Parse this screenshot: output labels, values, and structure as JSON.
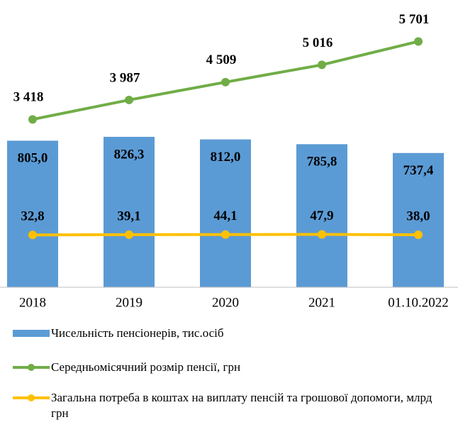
{
  "chart_data": {
    "type": "bar-line",
    "categories": [
      "2018",
      "2019",
      "2020",
      "2021",
      "01.10.2022"
    ],
    "ylim": [
      0,
      1500
    ],
    "y2lim": [
      -1500,
      6500
    ],
    "series": [
      {
        "name": "Чисельність пенсіонерів, тис.осіб",
        "type": "bar",
        "color": "#5b9bd5",
        "values": [
          805.0,
          826.3,
          812.0,
          785.8,
          737.4
        ],
        "value_labels": [
          "805,0",
          "826,3",
          "812,0",
          "785,8",
          "737,4"
        ]
      },
      {
        "name": "Середньомісячний розмір пенсії, грн",
        "type": "line",
        "axis": "y2",
        "color": "#70ad47",
        "values": [
          3418,
          3987,
          4509,
          5016,
          5701
        ],
        "value_labels": [
          "3 418",
          "3 987",
          "4 509",
          "5 016",
          "5 701"
        ]
      },
      {
        "name": "Загальна потреба в коштах на виплату пенсій та грошової допомоги, млрд грн",
        "type": "line",
        "axis": "y2",
        "color": "#ffc000",
        "values": [
          32.8,
          39.1,
          44.1,
          47.9,
          38.0
        ],
        "value_labels": [
          "32,8",
          "39,1",
          "44,1",
          "47,9",
          "38,0"
        ]
      }
    ]
  }
}
